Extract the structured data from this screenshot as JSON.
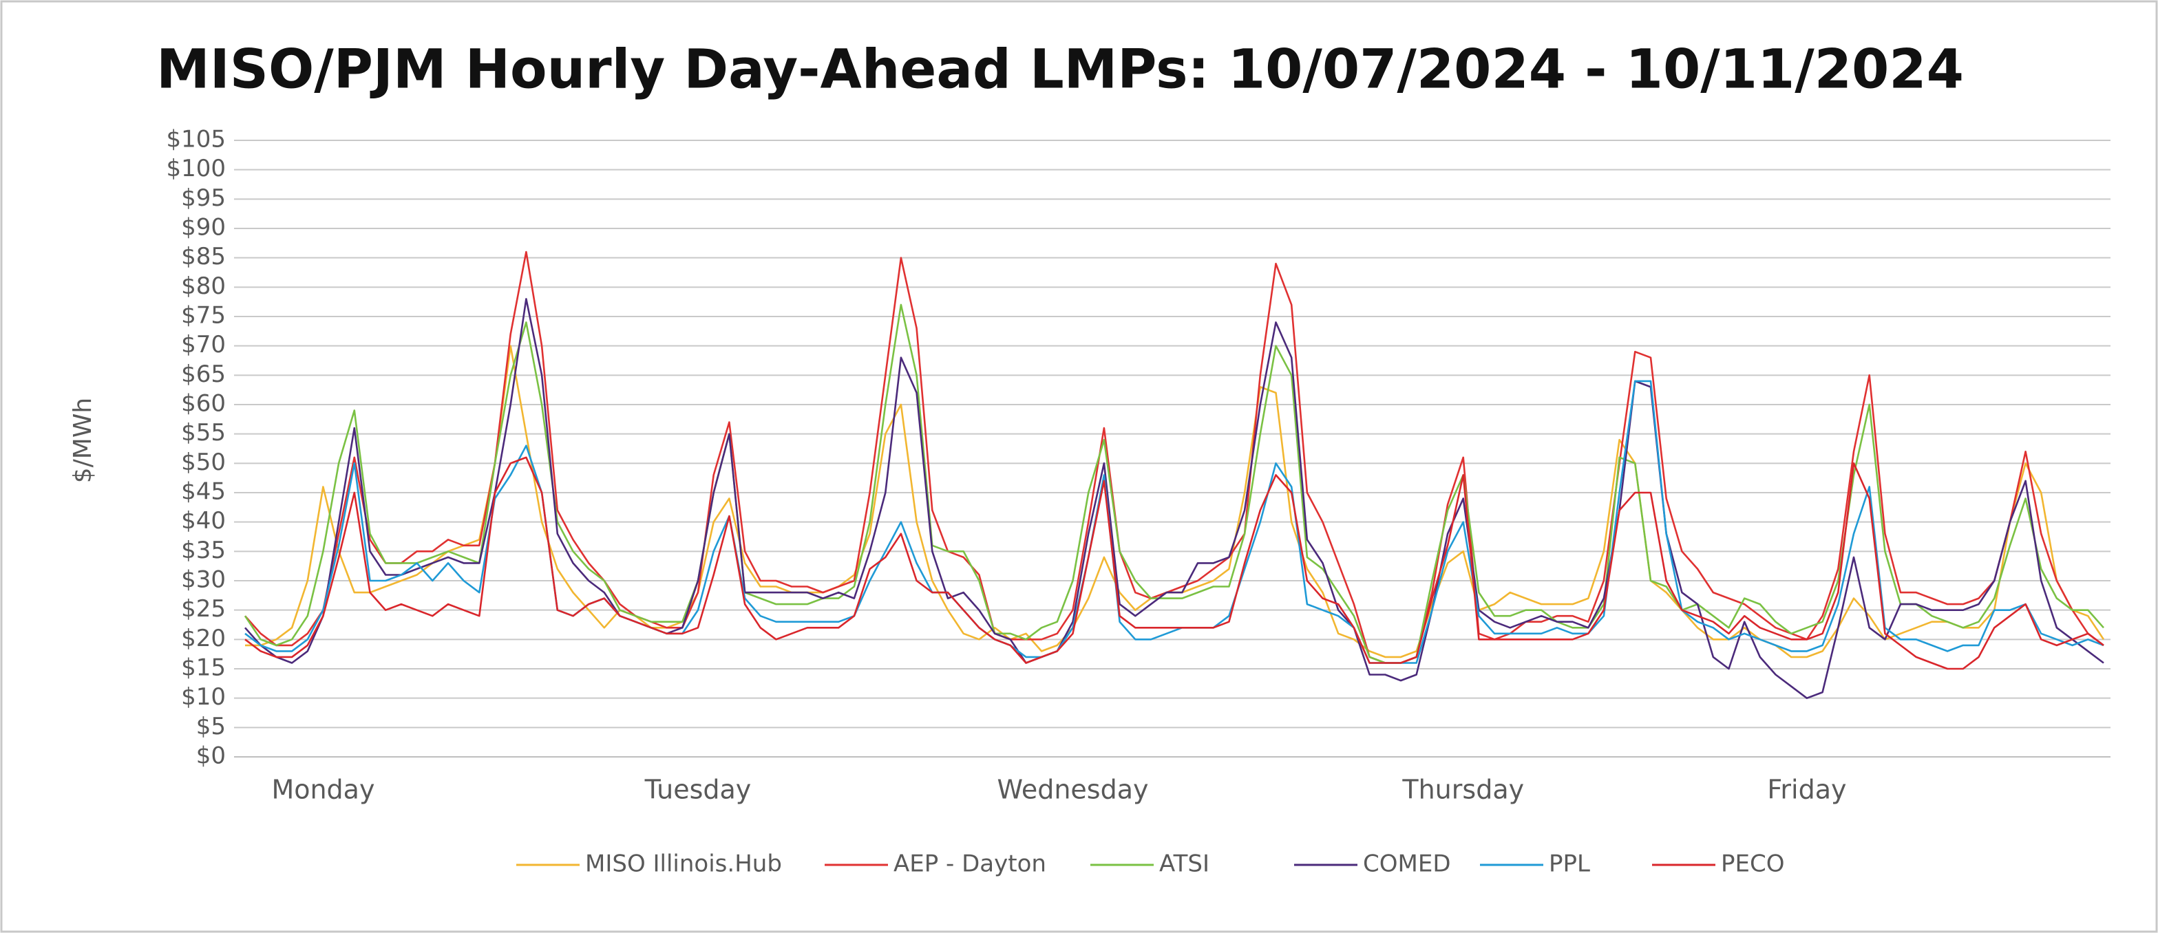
{
  "chart_data": {
    "type": "line",
    "title": "MISO/PJM Hourly Day-Ahead LMPs: 10/07/2024 - 10/11/2024",
    "y_label": "$/MWh",
    "categories": [
      null,
      null,
      null,
      null,
      null,
      "Monday",
      null,
      null,
      null,
      null,
      null,
      null,
      null,
      null,
      null,
      null,
      null,
      null,
      null,
      null,
      null,
      null,
      null,
      null,
      null,
      null,
      null,
      null,
      null,
      "Tuesday",
      null,
      null,
      null,
      null,
      null,
      null,
      null,
      null,
      null,
      null,
      null,
      null,
      null,
      null,
      null,
      null,
      null,
      null,
      null,
      null,
      null,
      null,
      null,
      "Wednesday",
      null,
      null,
      null,
      null,
      null,
      null,
      null,
      null,
      null,
      null,
      null,
      null,
      null,
      null,
      null,
      null,
      null,
      null,
      null,
      null,
      null,
      null,
      null,
      null,
      "Thursday",
      null,
      null,
      null,
      null,
      null,
      null,
      null,
      null,
      null,
      null,
      null,
      null,
      null,
      null,
      null,
      null,
      null,
      null,
      null,
      null,
      null,
      "Friday",
      null,
      null,
      null,
      null,
      null,
      null,
      null,
      null,
      null,
      null,
      null,
      null,
      null,
      null,
      null,
      null,
      null,
      null,
      null
    ],
    "ylim": [
      0,
      105
    ],
    "yticks": [
      {
        "value": 0,
        "label": "$0"
      },
      {
        "value": 5,
        "label": "$5"
      },
      {
        "value": 10,
        "label": "$10"
      },
      {
        "value": 15,
        "label": "$15"
      },
      {
        "value": 20,
        "label": "$20"
      },
      {
        "value": 25,
        "label": "$25"
      },
      {
        "value": 30,
        "label": "$30"
      },
      {
        "value": 35,
        "label": "$35"
      },
      {
        "value": 40,
        "label": "$40"
      },
      {
        "value": 45,
        "label": "$45"
      },
      {
        "value": 50,
        "label": "$50"
      },
      {
        "value": 55,
        "label": "$55"
      },
      {
        "value": 60,
        "label": "$60"
      },
      {
        "value": 65,
        "label": "$65"
      },
      {
        "value": 70,
        "label": "$70"
      },
      {
        "value": 75,
        "label": "$75"
      },
      {
        "value": 80,
        "label": "$80"
      },
      {
        "value": 85,
        "label": "$85"
      },
      {
        "value": 90,
        "label": "$90"
      },
      {
        "value": 95,
        "label": "$95"
      },
      {
        "value": 100,
        "label": "$100"
      },
      {
        "value": 105,
        "label": "$105"
      }
    ],
    "grid": true,
    "legend": "bottom",
    "series": [
      {
        "name": "MISO Illinois.Hub",
        "color": "#f2b630",
        "values": [
          19,
          19,
          20,
          22,
          30,
          46,
          35,
          28,
          28,
          29,
          30,
          31,
          33,
          35,
          36,
          37,
          50,
          70,
          55,
          40,
          32,
          28,
          25,
          22,
          25,
          24,
          22,
          22,
          23,
          28,
          40,
          44,
          33,
          29,
          29,
          28,
          28,
          28,
          29,
          31,
          38,
          55,
          60,
          40,
          30,
          25,
          21,
          20,
          22,
          20,
          21,
          18,
          19,
          22,
          27,
          34,
          28,
          25,
          27,
          28,
          28,
          29,
          30,
          32,
          45,
          63,
          62,
          40,
          32,
          28,
          21,
          20,
          18,
          17,
          17,
          18,
          26,
          33,
          35,
          25,
          26,
          28,
          27,
          26,
          26,
          26,
          27,
          35,
          54,
          50,
          30,
          28,
          25,
          22,
          20,
          20,
          22,
          20,
          19,
          17,
          17,
          18,
          22,
          27,
          24,
          20,
          21,
          22,
          23,
          23,
          22,
          22,
          25,
          40,
          50,
          45,
          30,
          25,
          24,
          20
        ]
      },
      {
        "name": "AEP - Dayton",
        "color": "#e03131",
        "values": [
          24,
          21,
          19,
          19,
          21,
          25,
          38,
          51,
          37,
          33,
          33,
          35,
          35,
          37,
          36,
          36,
          50,
          72,
          86,
          70,
          42,
          37,
          33,
          30,
          26,
          24,
          23,
          22,
          22,
          28,
          48,
          57,
          35,
          30,
          30,
          29,
          29,
          28,
          29,
          30,
          45,
          65,
          85,
          73,
          42,
          35,
          34,
          31,
          21,
          20,
          20,
          20,
          21,
          25,
          40,
          56,
          35,
          28,
          27,
          28,
          29,
          30,
          32,
          34,
          38,
          65,
          84,
          77,
          45,
          40,
          33,
          26,
          17,
          16,
          16,
          17,
          28,
          43,
          51,
          21,
          20,
          21,
          23,
          23,
          24,
          24,
          23,
          30,
          50,
          69,
          68,
          44,
          35,
          32,
          28,
          27,
          26,
          24,
          22,
          21,
          20,
          24,
          32,
          52,
          65,
          38,
          28,
          28,
          27,
          26,
          26,
          27,
          30,
          40,
          52,
          38,
          30,
          25,
          21,
          19
        ]
      },
      {
        "name": "ATSI",
        "color": "#7ac143",
        "values": [
          24,
          20,
          19,
          20,
          24,
          35,
          50,
          59,
          38,
          33,
          33,
          33,
          34,
          35,
          34,
          33,
          50,
          65,
          74,
          60,
          40,
          35,
          32,
          30,
          25,
          24,
          23,
          23,
          23,
          30,
          45,
          55,
          28,
          27,
          26,
          26,
          26,
          27,
          27,
          29,
          40,
          60,
          77,
          65,
          36,
          35,
          35,
          30,
          21,
          21,
          20,
          22,
          23,
          30,
          45,
          54,
          35,
          30,
          27,
          27,
          27,
          28,
          29,
          29,
          38,
          55,
          70,
          65,
          34,
          32,
          28,
          24,
          17,
          16,
          16,
          17,
          30,
          42,
          48,
          28,
          24,
          24,
          25,
          25,
          23,
          22,
          22,
          26,
          51,
          50,
          30,
          29,
          25,
          26,
          24,
          22,
          27,
          26,
          23,
          21,
          22,
          23,
          30,
          48,
          60,
          35,
          26,
          26,
          24,
          23,
          22,
          23,
          27,
          36,
          44,
          32,
          27,
          25,
          25,
          22
        ]
      },
      {
        "name": "COMED",
        "color": "#4b2a7b",
        "values": [
          22,
          19,
          17,
          16,
          18,
          24,
          40,
          56,
          35,
          31,
          31,
          32,
          33,
          34,
          33,
          33,
          45,
          60,
          78,
          65,
          38,
          33,
          30,
          28,
          24,
          23,
          22,
          21,
          22,
          30,
          45,
          55,
          28,
          28,
          28,
          28,
          28,
          27,
          28,
          27,
          35,
          45,
          68,
          62,
          35,
          27,
          28,
          25,
          21,
          20,
          16,
          17,
          18,
          23,
          38,
          50,
          26,
          24,
          26,
          28,
          28,
          33,
          33,
          34,
          42,
          60,
          74,
          68,
          37,
          33,
          25,
          22,
          14,
          14,
          13,
          14,
          25,
          38,
          44,
          25,
          23,
          22,
          23,
          24,
          23,
          23,
          22,
          27,
          42,
          64,
          63,
          38,
          28,
          26,
          17,
          15,
          23,
          17,
          14,
          12,
          10,
          11,
          22,
          34,
          22,
          20,
          26,
          26,
          25,
          25,
          25,
          26,
          30,
          40,
          47,
          30,
          22,
          20,
          18,
          16
        ]
      },
      {
        "name": "PPL",
        "color": "#1f9ad6",
        "values": [
          21,
          19,
          18,
          18,
          20,
          25,
          36,
          50,
          30,
          30,
          31,
          33,
          30,
          33,
          30,
          28,
          44,
          48,
          53,
          45,
          25,
          24,
          26,
          27,
          24,
          23,
          22,
          21,
          21,
          25,
          35,
          41,
          27,
          24,
          23,
          23,
          23,
          23,
          23,
          24,
          30,
          35,
          40,
          33,
          28,
          28,
          25,
          22,
          20,
          19,
          17,
          17,
          18,
          22,
          34,
          48,
          23,
          20,
          20,
          21,
          22,
          22,
          22,
          24,
          32,
          40,
          50,
          46,
          26,
          25,
          24,
          22,
          16,
          16,
          16,
          16,
          25,
          35,
          40,
          24,
          21,
          21,
          21,
          21,
          22,
          21,
          21,
          24,
          45,
          64,
          64,
          38,
          25,
          23,
          22,
          20,
          21,
          20,
          19,
          18,
          18,
          19,
          26,
          38,
          46,
          22,
          20,
          20,
          19,
          18,
          19,
          19,
          25,
          25,
          26,
          21,
          20,
          19,
          20,
          19
        ]
      },
      {
        "name": "PECO",
        "color": "#d9262b",
        "values": [
          20,
          18,
          17,
          17,
          19,
          24,
          34,
          45,
          28,
          25,
          26,
          25,
          24,
          26,
          25,
          24,
          45,
          50,
          51,
          45,
          25,
          24,
          26,
          27,
          24,
          23,
          22,
          21,
          21,
          22,
          31,
          41,
          26,
          22,
          20,
          21,
          22,
          22,
          22,
          24,
          32,
          34,
          38,
          30,
          28,
          28,
          25,
          22,
          20,
          19,
          16,
          17,
          18,
          21,
          34,
          47,
          24,
          22,
          22,
          22,
          22,
          22,
          22,
          23,
          33,
          42,
          48,
          45,
          30,
          27,
          26,
          22,
          16,
          16,
          16,
          17,
          27,
          36,
          48,
          20,
          20,
          20,
          20,
          20,
          20,
          20,
          21,
          25,
          42,
          45,
          45,
          30,
          25,
          24,
          23,
          21,
          24,
          22,
          21,
          20,
          20,
          21,
          28,
          50,
          44,
          21,
          19,
          17,
          16,
          15,
          15,
          17,
          22,
          24,
          26,
          20,
          19,
          20,
          21,
          19
        ]
      }
    ]
  }
}
